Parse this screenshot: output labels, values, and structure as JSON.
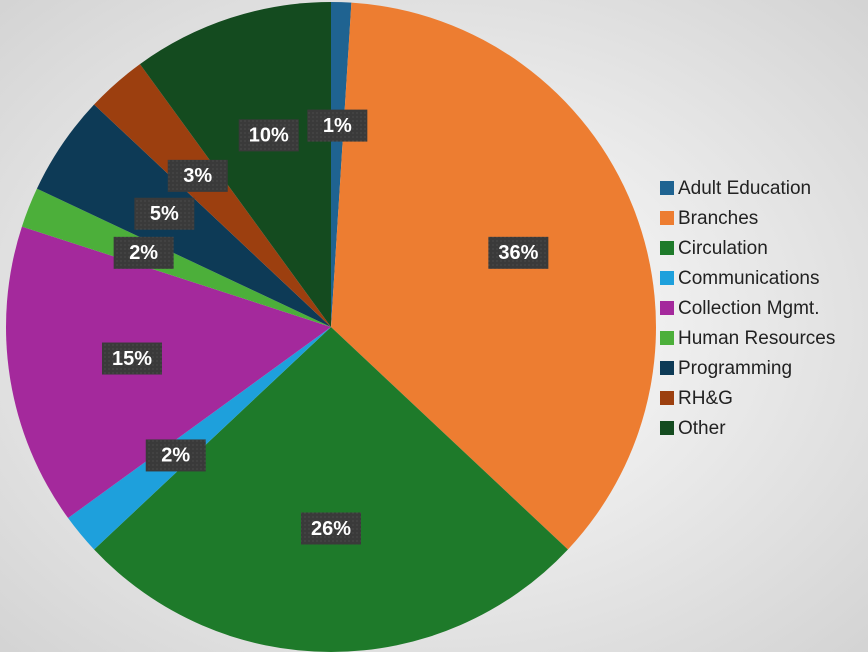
{
  "chart_data": {
    "type": "pie",
    "categories": [
      "Adult Education",
      "Branches",
      "Circulation",
      "Communications",
      "Collection Mgmt.",
      "Human Resources",
      "Programming",
      "RH&G",
      "Other"
    ],
    "values": [
      1,
      36,
      26,
      2,
      15,
      2,
      5,
      3,
      10
    ],
    "value_labels": [
      "1%",
      "36%",
      "26%",
      "2%",
      "15%",
      "2%",
      "5%",
      "3%",
      "10%"
    ],
    "colors": [
      "#1f6391",
      "#ed7d31",
      "#1e7a2a",
      "#1ea0dc",
      "#a4299c",
      "#4caf3a",
      "#0d3a56",
      "#9c3f0f",
      "#144b1f"
    ],
    "legend": "right"
  }
}
